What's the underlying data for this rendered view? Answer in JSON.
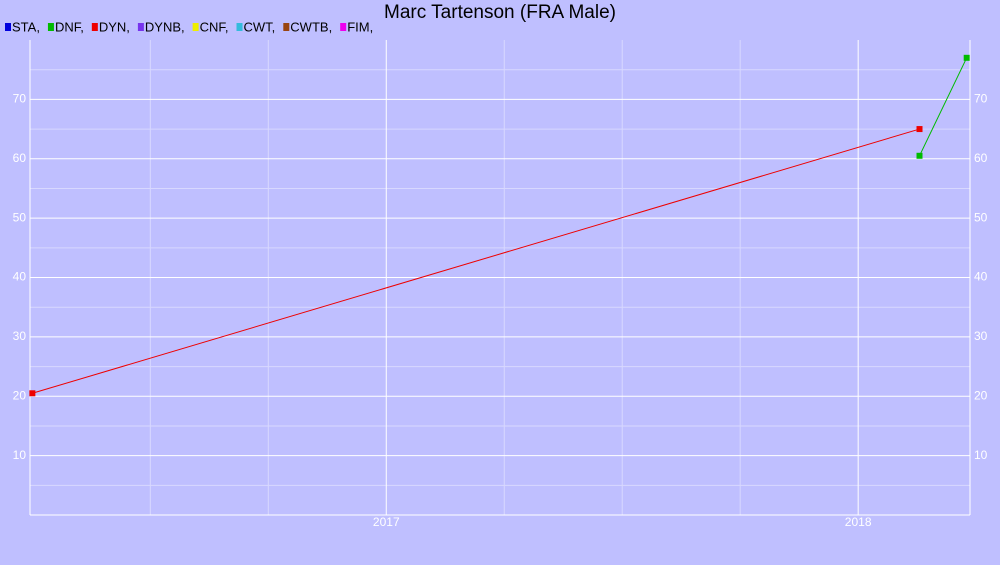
{
  "chart_data": {
    "type": "line",
    "title": "Marc Tartenson (FRA Male)",
    "series": [
      {
        "name": "STA,",
        "color": "#0000dd",
        "x": [],
        "values": []
      },
      {
        "name": "DNF,",
        "color": "#00bb00",
        "x": [
          2018.13,
          2018.23
        ],
        "values": [
          60.5,
          77
        ]
      },
      {
        "name": "DYN,",
        "color": "#ee0000",
        "x": [
          2016.25,
          2018.13
        ],
        "values": [
          20.5,
          65
        ]
      },
      {
        "name": "DYNB,",
        "color": "#7733ee",
        "x": [],
        "values": []
      },
      {
        "name": "CNF,",
        "color": "#eeee00",
        "x": [],
        "values": []
      },
      {
        "name": "CWT,",
        "color": "#33bbdd",
        "x": [],
        "values": []
      },
      {
        "name": "CWTB,",
        "color": "#994411",
        "x": [],
        "values": []
      },
      {
        "name": "FIM,",
        "color": "#ee00ee",
        "x": [],
        "values": []
      }
    ],
    "xlim": [
      2016.245,
      2018.237
    ],
    "xticks": [
      2017,
      2018
    ],
    "xminorticks": [
      2016.5,
      2016.75,
      2017.25,
      2017.5,
      2017.75
    ],
    "ylim": [
      0,
      80
    ],
    "yticks": [
      10,
      20,
      30,
      40,
      50,
      60,
      70
    ],
    "yminorticks": [
      5,
      15,
      25,
      35,
      45,
      55,
      65,
      75
    ],
    "grid": true
  }
}
